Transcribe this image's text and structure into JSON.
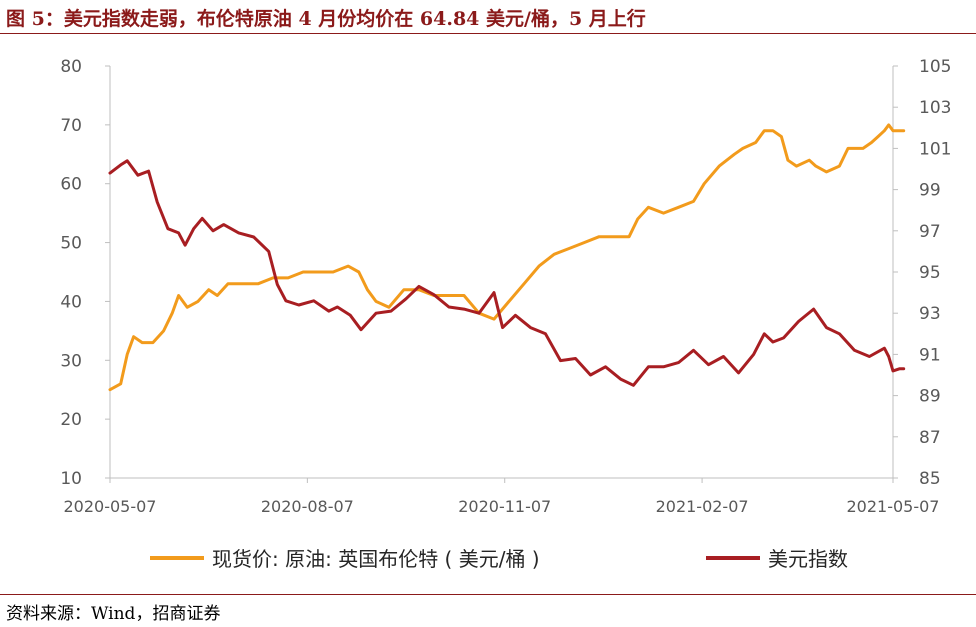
{
  "figure": {
    "title": "图 5：美元指数走弱，布伦特原油 4 月份均价在 64.84 美元/桶，5 月上行",
    "source": "资料来源：Wind，招商证券"
  },
  "colors": {
    "oil": "#f29b1c",
    "usd": "#a81e22",
    "title": "#8b1a1a",
    "axis": "#bfbfbf",
    "tick_text": "#595959"
  },
  "chart_data": {
    "type": "line",
    "x_ticks": [
      "2020-05-07",
      "2020-08-07",
      "2020-11-07",
      "2021-02-07",
      "2021-05-07"
    ],
    "x_range": [
      "2020-05-07",
      "2021-05-07"
    ],
    "ylim_left": [
      10,
      80
    ],
    "ylim_right": [
      85,
      105
    ],
    "yticks_left": [
      "10",
      "20",
      "30",
      "40",
      "50",
      "60",
      "70",
      "80"
    ],
    "yticks_right": [
      "85",
      "87",
      "89",
      "91",
      "93",
      "95",
      "97",
      "99",
      "101",
      "103",
      "105"
    ],
    "grid": false,
    "legend_position": "bottom",
    "series": [
      {
        "name": "现货价: 原油: 英国布伦特 ( 美元/桶 )",
        "axis": "left",
        "points": [
          [
            "2020-05-07",
            25
          ],
          [
            "2020-05-12",
            26
          ],
          [
            "2020-05-15",
            31
          ],
          [
            "2020-05-18",
            34
          ],
          [
            "2020-05-22",
            33
          ],
          [
            "2020-05-27",
            33
          ],
          [
            "2020-06-01",
            35
          ],
          [
            "2020-06-05",
            38
          ],
          [
            "2020-06-08",
            41
          ],
          [
            "2020-06-12",
            39
          ],
          [
            "2020-06-17",
            40
          ],
          [
            "2020-06-22",
            42
          ],
          [
            "2020-06-26",
            41
          ],
          [
            "2020-07-01",
            43
          ],
          [
            "2020-07-08",
            43
          ],
          [
            "2020-07-15",
            43
          ],
          [
            "2020-07-22",
            44
          ],
          [
            "2020-07-29",
            44
          ],
          [
            "2020-08-05",
            45
          ],
          [
            "2020-08-12",
            45
          ],
          [
            "2020-08-19",
            45
          ],
          [
            "2020-08-26",
            46
          ],
          [
            "2020-08-31",
            45
          ],
          [
            "2020-09-04",
            42
          ],
          [
            "2020-09-08",
            40
          ],
          [
            "2020-09-14",
            39
          ],
          [
            "2020-09-21",
            42
          ],
          [
            "2020-09-28",
            42
          ],
          [
            "2020-10-05",
            41
          ],
          [
            "2020-10-12",
            41
          ],
          [
            "2020-10-19",
            41
          ],
          [
            "2020-10-26",
            38
          ],
          [
            "2020-11-02",
            37
          ],
          [
            "2020-11-09",
            40
          ],
          [
            "2020-11-16",
            43
          ],
          [
            "2020-11-23",
            46
          ],
          [
            "2020-11-30",
            48
          ],
          [
            "2020-12-07",
            49
          ],
          [
            "2020-12-14",
            50
          ],
          [
            "2020-12-21",
            51
          ],
          [
            "2020-12-28",
            51
          ],
          [
            "2021-01-04",
            51
          ],
          [
            "2021-01-08",
            54
          ],
          [
            "2021-01-13",
            56
          ],
          [
            "2021-01-20",
            55
          ],
          [
            "2021-01-27",
            56
          ],
          [
            "2021-02-03",
            57
          ],
          [
            "2021-02-08",
            60
          ],
          [
            "2021-02-15",
            63
          ],
          [
            "2021-02-22",
            65
          ],
          [
            "2021-02-26",
            66
          ],
          [
            "2021-03-04",
            67
          ],
          [
            "2021-03-08",
            69
          ],
          [
            "2021-03-12",
            69
          ],
          [
            "2021-03-16",
            68
          ],
          [
            "2021-03-19",
            64
          ],
          [
            "2021-03-23",
            63
          ],
          [
            "2021-03-29",
            64
          ],
          [
            "2021-04-01",
            63
          ],
          [
            "2021-04-06",
            62
          ],
          [
            "2021-04-12",
            63
          ],
          [
            "2021-04-16",
            66
          ],
          [
            "2021-04-20",
            66
          ],
          [
            "2021-04-23",
            66
          ],
          [
            "2021-04-27",
            67
          ],
          [
            "2021-04-30",
            68
          ],
          [
            "2021-05-03",
            69
          ],
          [
            "2021-05-05",
            70
          ],
          [
            "2021-05-07",
            69
          ],
          [
            "2021-05-10",
            69
          ],
          [
            "2021-05-12",
            69
          ]
        ]
      },
      {
        "name": "美元指数",
        "axis": "right",
        "points": [
          [
            "2020-05-07",
            99.8
          ],
          [
            "2020-05-12",
            100.2
          ],
          [
            "2020-05-15",
            100.4
          ],
          [
            "2020-05-20",
            99.7
          ],
          [
            "2020-05-25",
            99.9
          ],
          [
            "2020-05-29",
            98.4
          ],
          [
            "2020-06-03",
            97.1
          ],
          [
            "2020-06-08",
            96.9
          ],
          [
            "2020-06-11",
            96.3
          ],
          [
            "2020-06-15",
            97.1
          ],
          [
            "2020-06-19",
            97.6
          ],
          [
            "2020-06-24",
            97.0
          ],
          [
            "2020-06-29",
            97.3
          ],
          [
            "2020-07-06",
            96.9
          ],
          [
            "2020-07-13",
            96.7
          ],
          [
            "2020-07-20",
            96.0
          ],
          [
            "2020-07-24",
            94.4
          ],
          [
            "2020-07-28",
            93.6
          ],
          [
            "2020-08-03",
            93.4
          ],
          [
            "2020-08-10",
            93.6
          ],
          [
            "2020-08-17",
            93.1
          ],
          [
            "2020-08-21",
            93.3
          ],
          [
            "2020-08-27",
            92.9
          ],
          [
            "2020-09-01",
            92.2
          ],
          [
            "2020-09-08",
            93.0
          ],
          [
            "2020-09-15",
            93.1
          ],
          [
            "2020-09-22",
            93.7
          ],
          [
            "2020-09-28",
            94.3
          ],
          [
            "2020-10-05",
            93.9
          ],
          [
            "2020-10-12",
            93.3
          ],
          [
            "2020-10-19",
            93.2
          ],
          [
            "2020-10-26",
            93.0
          ],
          [
            "2020-11-02",
            94.0
          ],
          [
            "2020-11-06",
            92.3
          ],
          [
            "2020-11-12",
            92.9
          ],
          [
            "2020-11-19",
            92.3
          ],
          [
            "2020-11-26",
            92.0
          ],
          [
            "2020-12-03",
            90.7
          ],
          [
            "2020-12-10",
            90.8
          ],
          [
            "2020-12-17",
            90.0
          ],
          [
            "2020-12-24",
            90.4
          ],
          [
            "2020-12-31",
            89.8
          ],
          [
            "2021-01-06",
            89.5
          ],
          [
            "2021-01-13",
            90.4
          ],
          [
            "2021-01-20",
            90.4
          ],
          [
            "2021-01-27",
            90.6
          ],
          [
            "2021-02-03",
            91.2
          ],
          [
            "2021-02-10",
            90.5
          ],
          [
            "2021-02-17",
            90.9
          ],
          [
            "2021-02-24",
            90.1
          ],
          [
            "2021-03-03",
            91.0
          ],
          [
            "2021-03-08",
            92.0
          ],
          [
            "2021-03-12",
            91.6
          ],
          [
            "2021-03-17",
            91.8
          ],
          [
            "2021-03-24",
            92.6
          ],
          [
            "2021-03-31",
            93.2
          ],
          [
            "2021-04-06",
            92.3
          ],
          [
            "2021-04-12",
            92.0
          ],
          [
            "2021-04-19",
            91.2
          ],
          [
            "2021-04-26",
            90.9
          ],
          [
            "2021-05-03",
            91.3
          ],
          [
            "2021-05-05",
            90.9
          ],
          [
            "2021-05-07",
            90.2
          ],
          [
            "2021-05-10",
            90.3
          ],
          [
            "2021-05-12",
            90.3
          ]
        ]
      }
    ]
  }
}
